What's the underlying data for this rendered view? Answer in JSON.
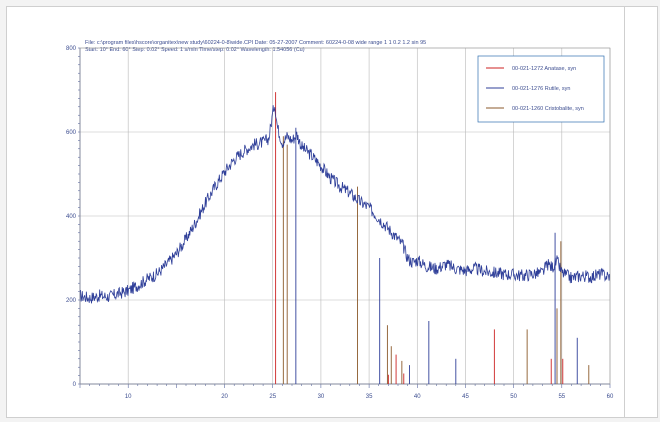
{
  "header": {
    "line1": "File: c:\\program files\\hscore\\organitex\\new study\\60224-0-8\\wide.CPI   Date: 05-27-2007    Comment: 60224-0-08 wide range 1 1 0.2 1.2 sin 95",
    "line2": "Start: 10°   End: 60°   Step: 0.02°   Speed: 1 s/min   Time/step: 0.02°   Wavelength: 1.54056 (Cu)"
  },
  "chart_data": {
    "type": "line",
    "xlim": [
      5,
      60
    ],
    "ylim": [
      0,
      800
    ],
    "x_ticks": [
      10,
      20,
      25,
      30,
      35,
      40,
      45,
      50,
      55,
      60
    ],
    "x_tick_labels": [
      "10",
      "20",
      "25",
      "30",
      "35",
      "40",
      "45",
      "50",
      "55",
      "60"
    ],
    "y_ticks": [
      0,
      200,
      400,
      600,
      800
    ],
    "y_tick_labels": [
      "0",
      "200",
      "400",
      "600",
      "800"
    ],
    "grid": true,
    "legend_position": "top-right",
    "pattern": {
      "color": "#2f3f99",
      "points": [
        [
          5,
          210
        ],
        [
          6,
          205
        ],
        [
          7,
          210
        ],
        [
          8,
          208
        ],
        [
          9,
          215
        ],
        [
          10,
          222
        ],
        [
          11,
          235
        ],
        [
          12,
          250
        ],
        [
          13,
          262
        ],
        [
          14,
          285
        ],
        [
          15,
          310
        ],
        [
          16,
          345
        ],
        [
          17,
          385
        ],
        [
          18,
          430
        ],
        [
          19,
          470
        ],
        [
          20,
          505
        ],
        [
          21,
          535
        ],
        [
          22,
          555
        ],
        [
          23,
          570
        ],
        [
          24,
          575
        ],
        [
          24.6,
          585
        ],
        [
          25,
          645
        ],
        [
          25.2,
          670
        ],
        [
          25.5,
          610
        ],
        [
          26,
          575
        ],
        [
          26.5,
          590
        ],
        [
          27,
          580
        ],
        [
          27.5,
          595
        ],
        [
          28,
          565
        ],
        [
          29,
          545
        ],
        [
          30,
          520
        ],
        [
          31,
          490
        ],
        [
          32,
          470
        ],
        [
          33,
          455
        ],
        [
          34,
          435
        ],
        [
          35,
          420
        ],
        [
          36,
          395
        ],
        [
          37,
          370
        ],
        [
          38,
          345
        ],
        [
          38.5,
          330
        ],
        [
          39,
          300
        ],
        [
          39.5,
          290
        ],
        [
          40,
          295
        ],
        [
          41,
          280
        ],
        [
          42,
          275
        ],
        [
          43,
          285
        ],
        [
          44,
          275
        ],
        [
          45,
          270
        ],
        [
          46,
          275
        ],
        [
          47,
          268
        ],
        [
          48,
          265
        ],
        [
          49,
          262
        ],
        [
          50,
          260
        ],
        [
          51,
          258
        ],
        [
          52,
          262
        ],
        [
          53,
          265
        ],
        [
          53.5,
          285
        ],
        [
          54,
          278
        ],
        [
          54.5,
          292
        ],
        [
          55,
          265
        ],
        [
          56,
          252
        ],
        [
          57,
          258
        ],
        [
          58,
          255
        ],
        [
          59,
          262
        ],
        [
          60,
          255
        ]
      ]
    },
    "series": [
      {
        "name": "00-021-1272  Anatase, syn",
        "color": "#cc2222",
        "peaks": [
          [
            25.3,
            695
          ],
          [
            37.0,
            22
          ],
          [
            37.8,
            70
          ],
          [
            38.6,
            25
          ],
          [
            48.0,
            130
          ],
          [
            53.9,
            60
          ],
          [
            55.1,
            60
          ]
        ]
      },
      {
        "name": "00-021-1276  Rutile, syn",
        "color": "#2f3f99",
        "peaks": [
          [
            27.4,
            610
          ],
          [
            36.1,
            300
          ],
          [
            39.2,
            45
          ],
          [
            41.2,
            150
          ],
          [
            44.0,
            60
          ],
          [
            54.3,
            360
          ],
          [
            56.6,
            110
          ]
        ]
      },
      {
        "name": "00-021-1260  Cristobalite, syn",
        "color": "#8b5a2b",
        "peaks": [
          [
            26.1,
            590
          ],
          [
            26.5,
            570
          ],
          [
            33.8,
            470
          ],
          [
            36.9,
            140
          ],
          [
            37.3,
            90
          ],
          [
            38.4,
            55
          ],
          [
            51.4,
            130
          ],
          [
            54.5,
            180
          ],
          [
            54.9,
            340
          ],
          [
            57.8,
            45
          ]
        ]
      }
    ]
  }
}
